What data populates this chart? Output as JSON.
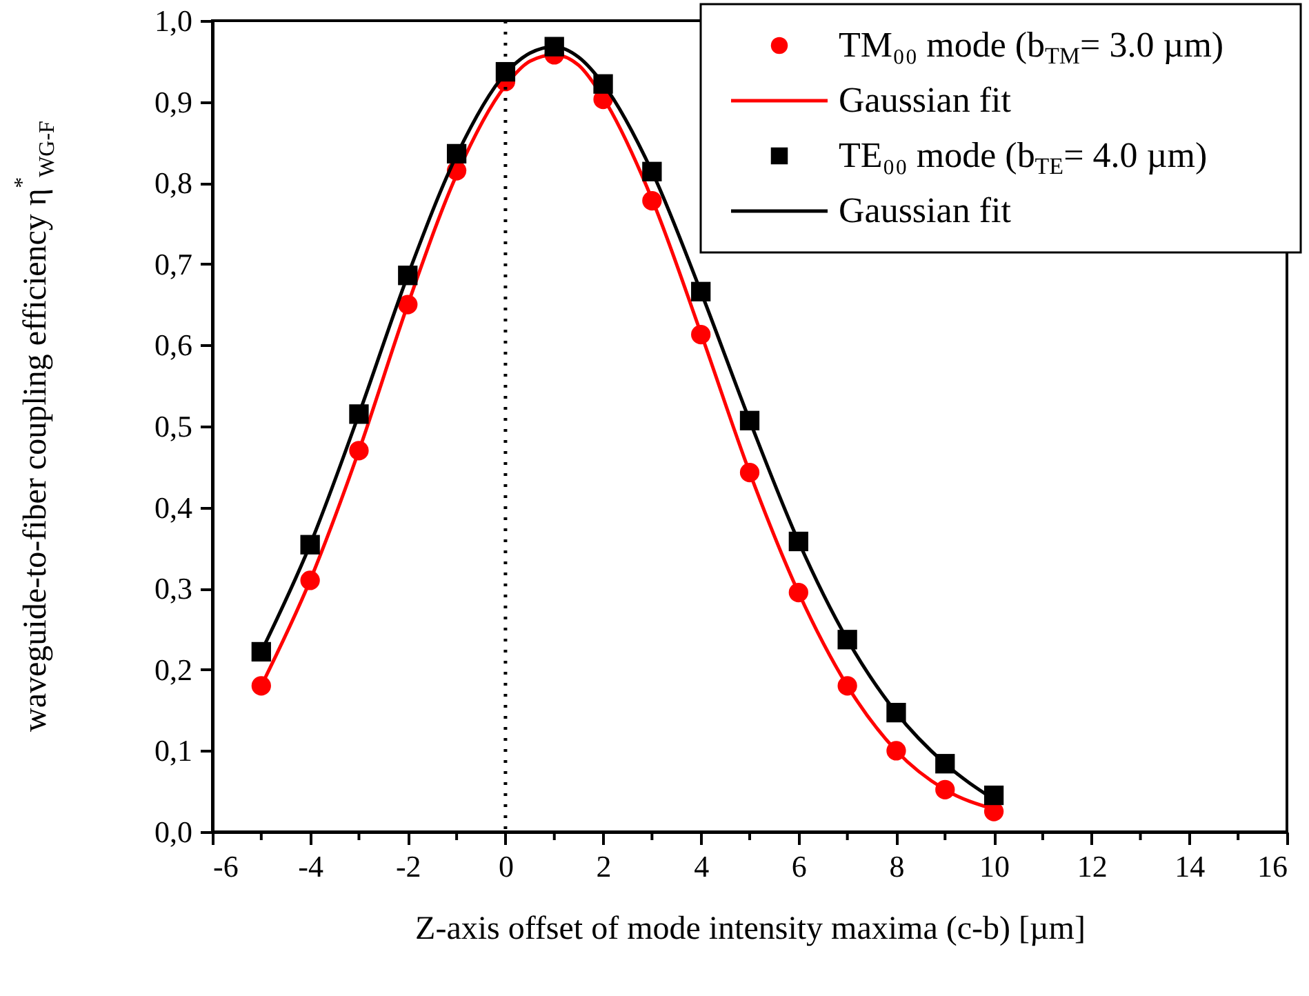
{
  "chart_data": {
    "type": "scatter",
    "xlabel": "Z-axis offset of mode intensity maxima (c-b) [µm]",
    "ylabel": "waveguide-to-fiber coupling efficiency η$^{*}$$_{WG-F}$",
    "xlim": [
      -6,
      16
    ],
    "xticks": [
      -6,
      {
        "value": -5,
        "label": null
      },
      -4,
      {
        "value": -3,
        "label": null
      },
      -2,
      {
        "value": -1,
        "label": null
      },
      0,
      {
        "value": 1,
        "label": null
      },
      2,
      {
        "value": 3,
        "label": null
      },
      4,
      {
        "value": 5,
        "label": null
      },
      6,
      {
        "value": 7,
        "label": null
      },
      8,
      {
        "value": 9,
        "label": null
      },
      10,
      {
        "value": 11,
        "label": null
      },
      12,
      {
        "value": 13,
        "label": null
      },
      14,
      {
        "value": 15,
        "label": null
      },
      16
    ],
    "ylim": [
      0,
      1
    ],
    "yticks": [
      {
        "value": 0,
        "label": "0,0"
      },
      {
        "value": 0.1,
        "label": "0,1"
      },
      {
        "value": 0.2,
        "label": "0,2"
      },
      {
        "value": 0.3,
        "label": "0,3"
      },
      {
        "value": 0.4,
        "label": "0,4"
      },
      {
        "value": 0.5,
        "label": "0,5"
      },
      {
        "value": 0.6,
        "label": "0,6"
      },
      {
        "value": 0.7,
        "label": "0,7"
      },
      {
        "value": 0.8,
        "label": "0,8"
      },
      {
        "value": 0.9,
        "label": "0,9"
      },
      {
        "value": 1,
        "label": "1,0"
      }
    ],
    "grid": false,
    "legend": "top right",
    "ref_lines": [
      {
        "axis": "x",
        "value": 0,
        "line_style": "dotted",
        "color": "#000000"
      }
    ],
    "series": [
      {
        "name": "TM₀₀ mode (b$_{TM}$= 3.0 µm)",
        "type": "scatter",
        "marker": "circle",
        "color": "#ff0000",
        "x": [
          -5,
          -4,
          -3,
          -2,
          -1,
          0,
          1,
          2,
          3,
          4,
          5,
          6,
          7,
          8,
          9,
          10
        ],
        "values": [
          0.18,
          0.31,
          0.47,
          0.65,
          0.815,
          0.925,
          0.958,
          0.903,
          0.778,
          0.613,
          0.443,
          0.295,
          0.18,
          0.1,
          0.052,
          0.025
        ]
      },
      {
        "name": "Gaussian fit",
        "type": "line",
        "marker": "none",
        "line_style": "solid",
        "color": "#ff0000",
        "x": [
          -5,
          -4,
          -3,
          -2,
          -1,
          0,
          0.5,
          1,
          1.5,
          2,
          3,
          4,
          5,
          6,
          7,
          8,
          9,
          10
        ],
        "values": [
          0.18,
          0.31,
          0.47,
          0.65,
          0.81,
          0.92,
          0.95,
          0.958,
          0.945,
          0.905,
          0.78,
          0.615,
          0.443,
          0.295,
          0.18,
          0.1,
          0.052,
          0.028
        ]
      },
      {
        "name": "TE₀₀ mode (b$_{TE}$= 4.0 µm)",
        "type": "scatter",
        "marker": "square",
        "color": "#000000",
        "x": [
          -5,
          -4,
          -3,
          -2,
          -1,
          0,
          1,
          2,
          3,
          4,
          5,
          6,
          7,
          8,
          9,
          10
        ],
        "values": [
          0.222,
          0.354,
          0.515,
          0.686,
          0.836,
          0.937,
          0.968,
          0.922,
          0.814,
          0.666,
          0.507,
          0.358,
          0.237,
          0.147,
          0.084,
          0.045
        ]
      },
      {
        "name": "Gaussian fit",
        "type": "line",
        "marker": "none",
        "line_style": "solid",
        "color": "#000000",
        "x": [
          -5,
          -4,
          -3,
          -2,
          -1,
          0,
          0.5,
          1,
          1.5,
          2,
          3,
          4,
          5,
          6,
          7,
          8,
          9,
          10
        ],
        "values": [
          0.222,
          0.354,
          0.515,
          0.686,
          0.834,
          0.935,
          0.96,
          0.968,
          0.955,
          0.922,
          0.814,
          0.666,
          0.507,
          0.358,
          0.237,
          0.147,
          0.084,
          0.04
        ]
      }
    ]
  }
}
